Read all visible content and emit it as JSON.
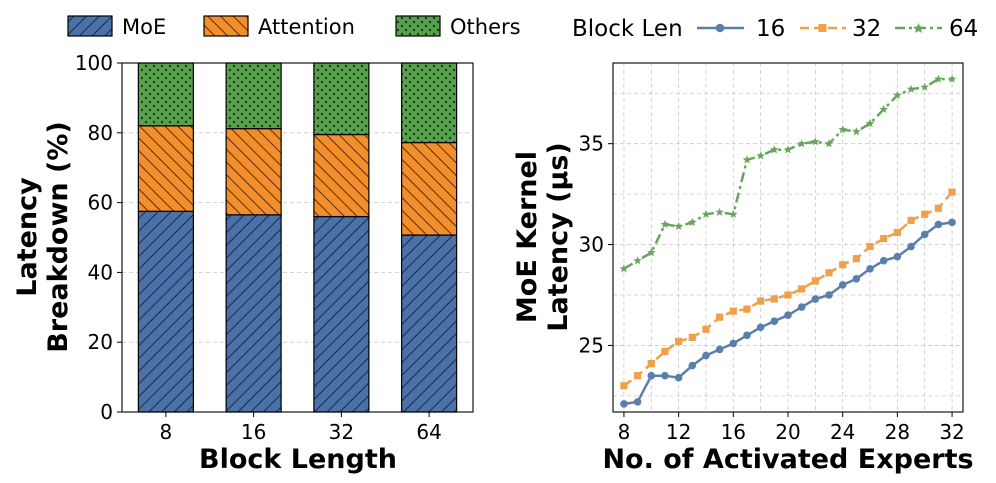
{
  "chart_data": [
    {
      "type": "bar",
      "stacked": true,
      "categories": [
        "8",
        "16",
        "32",
        "64"
      ],
      "series": [
        {
          "name": "MoE",
          "values": [
            57.5,
            56.5,
            56.0,
            50.7
          ],
          "color": "#4a72a8",
          "pattern": "diagonal-hatch"
        },
        {
          "name": "Attention",
          "values": [
            24.5,
            24.7,
            23.5,
            26.5
          ],
          "color": "#f28e2b",
          "pattern": "diagonal-hatch"
        },
        {
          "name": "Others",
          "values": [
            18.0,
            18.8,
            20.5,
            22.8
          ],
          "color": "#59a14f",
          "pattern": "dots"
        }
      ],
      "xlabel": "Block Length",
      "ylabel_line1": "Latency",
      "ylabel_line2": "Breakdown (%)",
      "ylim": [
        0,
        100
      ],
      "yticks": [
        "0",
        "20",
        "40",
        "60",
        "80",
        "100"
      ],
      "grid": true,
      "legend": [
        "MoE",
        "Attention",
        "Others"
      ]
    },
    {
      "type": "line",
      "x": [
        8,
        9,
        10,
        11,
        12,
        13,
        14,
        15,
        16,
        17,
        18,
        19,
        20,
        21,
        22,
        23,
        24,
        25,
        26,
        27,
        28,
        29,
        30,
        31,
        32
      ],
      "series": [
        {
          "name": "16",
          "color": "#5b7fad",
          "linestyle": "solid",
          "marker": "circle",
          "values": [
            22.1,
            22.2,
            23.5,
            23.5,
            23.4,
            24.0,
            24.5,
            24.8,
            25.1,
            25.5,
            25.9,
            26.2,
            26.5,
            26.9,
            27.3,
            27.5,
            28.0,
            28.3,
            28.8,
            29.2,
            29.4,
            29.9,
            30.5,
            31.0,
            31.1
          ]
        },
        {
          "name": "32",
          "color": "#f0a04b",
          "linestyle": "dashed",
          "marker": "square",
          "values": [
            23.0,
            23.5,
            24.1,
            24.7,
            25.2,
            25.4,
            25.8,
            26.4,
            26.7,
            26.8,
            27.2,
            27.3,
            27.5,
            27.8,
            28.2,
            28.6,
            29.0,
            29.3,
            29.9,
            30.3,
            30.6,
            31.2,
            31.5,
            31.8,
            32.6
          ]
        },
        {
          "name": "64",
          "color": "#6aa55f",
          "linestyle": "dashdot",
          "marker": "star",
          "values": [
            28.8,
            29.2,
            29.6,
            31.0,
            30.9,
            31.1,
            31.5,
            31.6,
            31.5,
            34.2,
            34.4,
            34.7,
            34.7,
            35.0,
            35.1,
            35.0,
            35.7,
            35.6,
            36.0,
            36.7,
            37.4,
            37.7,
            37.8,
            38.2,
            38.2
          ]
        }
      ],
      "xlabel": "No. of Activated Experts",
      "ylabel_line1": "MoE Kernel",
      "ylabel_line2": "Latency (µs)",
      "xlim": [
        7.2,
        32.8
      ],
      "ylim": [
        21.7,
        39.0
      ],
      "xticks": [
        "8",
        "12",
        "16",
        "20",
        "24",
        "28",
        "32"
      ],
      "yticks": [
        "25",
        "30",
        "35"
      ],
      "grid": true,
      "legend_title": "Block Len",
      "legend": [
        "16",
        "32",
        "64"
      ]
    }
  ]
}
